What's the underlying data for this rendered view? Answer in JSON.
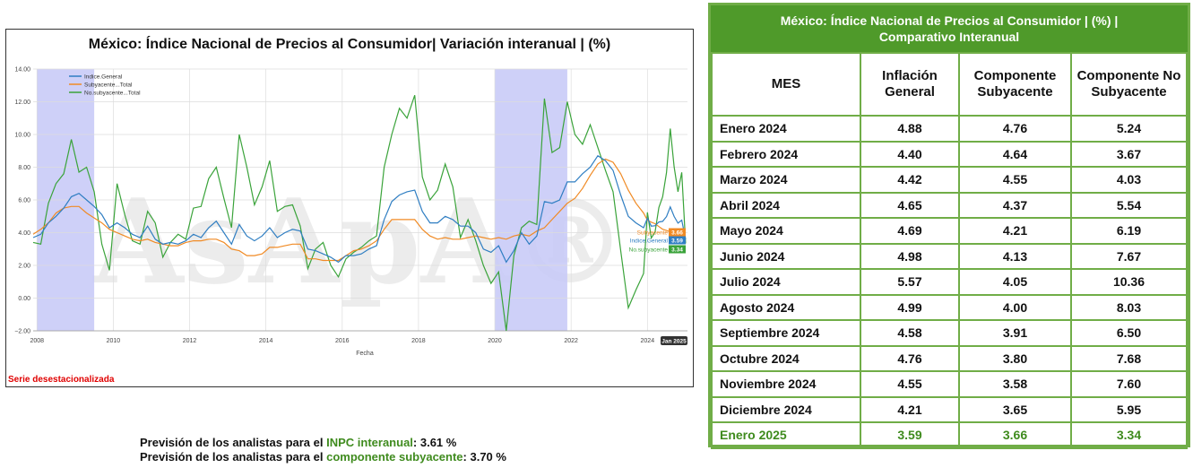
{
  "chart": {
    "title": "México: Índice Nacional de Precios al Consumidor| Variación interanual | (%)",
    "footnote": "Serie desestacionalizada",
    "watermark": "AsApA®"
  },
  "chart_data": {
    "type": "line",
    "xlabel": "Fecha",
    "ylabel": "",
    "ylim": [
      -2,
      14
    ],
    "yticks": [
      "14.00",
      "12.00",
      "10.00",
      "8.00",
      "6.00",
      "4.00",
      "2.00",
      "0.00",
      "−2.00"
    ],
    "xticks": [
      "2008",
      "2010",
      "2012",
      "2014",
      "2016",
      "2018",
      "2020",
      "2022",
      "2024"
    ],
    "last_x_label": "Jan 2025",
    "shaded_periods": [
      [
        2008.0,
        2009.5
      ],
      [
        2020.0,
        2021.9
      ]
    ],
    "legend_position": "top-left",
    "grid": true,
    "series": [
      {
        "name": "Indice.General",
        "color": "#2f7ec2",
        "end_label": "Indice.General",
        "end_value": "3.59",
        "x": [
          2007.9,
          2008.1,
          2008.3,
          2008.5,
          2008.7,
          2008.9,
          2009.1,
          2009.3,
          2009.5,
          2009.7,
          2009.9,
          2010.1,
          2010.3,
          2010.5,
          2010.7,
          2010.9,
          2011.1,
          2011.3,
          2011.5,
          2011.7,
          2011.9,
          2012.1,
          2012.3,
          2012.5,
          2012.7,
          2012.9,
          2013.1,
          2013.3,
          2013.5,
          2013.7,
          2013.9,
          2014.1,
          2014.3,
          2014.5,
          2014.7,
          2014.9,
          2015.1,
          2015.3,
          2015.5,
          2015.7,
          2015.9,
          2016.1,
          2016.3,
          2016.5,
          2016.7,
          2016.9,
          2017.1,
          2017.3,
          2017.5,
          2017.7,
          2017.9,
          2018.1,
          2018.3,
          2018.5,
          2018.7,
          2018.9,
          2019.1,
          2019.3,
          2019.5,
          2019.7,
          2019.9,
          2020.1,
          2020.3,
          2020.5,
          2020.7,
          2020.9,
          2021.1,
          2021.3,
          2021.5,
          2021.7,
          2021.9,
          2022.1,
          2022.3,
          2022.5,
          2022.7,
          2022.9,
          2023.1,
          2023.3,
          2023.5,
          2023.7,
          2023.9,
          2024.0,
          2024.1,
          2024.2,
          2024.3,
          2024.4,
          2024.5,
          2024.6,
          2024.7,
          2024.8,
          2024.9,
          2025.0
        ],
        "y": [
          3.7,
          3.9,
          4.6,
          5.0,
          5.5,
          6.2,
          6.4,
          6.0,
          5.6,
          5.1,
          4.3,
          4.6,
          4.3,
          3.9,
          3.7,
          4.4,
          3.6,
          3.3,
          3.4,
          3.3,
          3.5,
          3.9,
          3.7,
          4.3,
          4.7,
          4.0,
          3.3,
          4.5,
          3.8,
          3.5,
          3.8,
          4.3,
          3.7,
          4.0,
          4.2,
          4.1,
          3.0,
          2.9,
          2.7,
          2.5,
          2.2,
          2.6,
          2.6,
          2.7,
          3.0,
          3.2,
          4.8,
          5.9,
          6.3,
          6.5,
          6.6,
          5.3,
          4.6,
          4.6,
          5.0,
          4.8,
          4.4,
          4.4,
          4.0,
          3.0,
          2.8,
          3.2,
          2.2,
          2.9,
          4.0,
          3.3,
          3.8,
          5.9,
          5.8,
          6.0,
          7.1,
          7.1,
          7.6,
          8.0,
          8.7,
          8.4,
          7.8,
          6.3,
          5.0,
          4.6,
          4.3,
          4.88,
          4.4,
          4.42,
          4.65,
          4.69,
          4.98,
          5.57,
          4.99,
          4.58,
          4.76,
          3.59
        ]
      },
      {
        "name": "Subyacente...Total",
        "color": "#f08a24",
        "end_label": "Subyacente",
        "end_value": "3.66",
        "x": [
          2007.9,
          2008.1,
          2008.3,
          2008.5,
          2008.7,
          2008.9,
          2009.1,
          2009.3,
          2009.5,
          2009.7,
          2009.9,
          2010.1,
          2010.3,
          2010.5,
          2010.7,
          2010.9,
          2011.1,
          2011.3,
          2011.5,
          2011.7,
          2011.9,
          2012.1,
          2012.3,
          2012.5,
          2012.7,
          2012.9,
          2013.1,
          2013.3,
          2013.5,
          2013.7,
          2013.9,
          2014.1,
          2014.3,
          2014.5,
          2014.7,
          2014.9,
          2015.1,
          2015.3,
          2015.5,
          2015.7,
          2015.9,
          2016.1,
          2016.3,
          2016.5,
          2016.7,
          2016.9,
          2017.1,
          2017.3,
          2017.5,
          2017.7,
          2017.9,
          2018.1,
          2018.3,
          2018.5,
          2018.7,
          2018.9,
          2019.1,
          2019.3,
          2019.5,
          2019.7,
          2019.9,
          2020.1,
          2020.3,
          2020.5,
          2020.7,
          2020.9,
          2021.1,
          2021.3,
          2021.5,
          2021.7,
          2021.9,
          2022.1,
          2022.3,
          2022.5,
          2022.7,
          2022.9,
          2023.1,
          2023.3,
          2023.5,
          2023.7,
          2023.9,
          2024.0,
          2024.1,
          2024.2,
          2024.3,
          2024.4,
          2024.5,
          2024.6,
          2024.7,
          2024.8,
          2024.9,
          2025.0
        ],
        "y": [
          3.9,
          4.2,
          4.6,
          5.2,
          5.5,
          5.6,
          5.6,
          5.2,
          4.9,
          4.6,
          4.2,
          4.0,
          3.8,
          3.6,
          3.5,
          3.6,
          3.4,
          3.3,
          3.2,
          3.2,
          3.4,
          3.5,
          3.5,
          3.6,
          3.6,
          3.4,
          3.0,
          2.9,
          2.6,
          2.6,
          2.7,
          3.1,
          3.1,
          3.2,
          3.3,
          3.3,
          2.4,
          2.4,
          2.3,
          2.3,
          2.3,
          2.6,
          2.9,
          3.0,
          3.2,
          3.5,
          4.2,
          4.8,
          4.8,
          4.8,
          4.8,
          4.2,
          3.8,
          3.6,
          3.7,
          3.6,
          3.6,
          3.7,
          3.8,
          3.7,
          3.6,
          3.7,
          3.6,
          3.8,
          3.9,
          3.8,
          4.1,
          4.3,
          4.8,
          5.3,
          5.8,
          6.1,
          6.7,
          7.5,
          8.2,
          8.5,
          8.3,
          7.6,
          6.6,
          5.8,
          5.2,
          4.76,
          4.64,
          4.55,
          4.37,
          4.21,
          4.13,
          4.05,
          4.0,
          3.91,
          3.8,
          3.66
        ]
      },
      {
        "name": "No.subyacente...Total",
        "color": "#3aa33a",
        "end_label": "No.subyacente",
        "end_value": "3.34",
        "x": [
          2007.9,
          2008.1,
          2008.3,
          2008.5,
          2008.7,
          2008.9,
          2009.1,
          2009.3,
          2009.5,
          2009.7,
          2009.9,
          2010.1,
          2010.3,
          2010.5,
          2010.7,
          2010.9,
          2011.1,
          2011.3,
          2011.5,
          2011.7,
          2011.9,
          2012.1,
          2012.3,
          2012.5,
          2012.7,
          2012.9,
          2013.1,
          2013.3,
          2013.5,
          2013.7,
          2013.9,
          2014.1,
          2014.3,
          2014.5,
          2014.7,
          2014.9,
          2015.1,
          2015.3,
          2015.5,
          2015.7,
          2015.9,
          2016.1,
          2016.3,
          2016.5,
          2016.7,
          2016.9,
          2017.1,
          2017.3,
          2017.5,
          2017.7,
          2017.9,
          2018.1,
          2018.3,
          2018.5,
          2018.7,
          2018.9,
          2019.1,
          2019.3,
          2019.5,
          2019.7,
          2019.9,
          2020.1,
          2020.3,
          2020.5,
          2020.7,
          2020.9,
          2021.1,
          2021.3,
          2021.5,
          2021.7,
          2021.9,
          2022.1,
          2022.3,
          2022.5,
          2022.7,
          2022.9,
          2023.1,
          2023.3,
          2023.5,
          2023.7,
          2023.9,
          2024.0,
          2024.1,
          2024.2,
          2024.3,
          2024.4,
          2024.5,
          2024.6,
          2024.7,
          2024.8,
          2024.9,
          2025.0
        ],
        "y": [
          3.4,
          3.3,
          5.8,
          7.0,
          7.6,
          9.7,
          7.7,
          8.0,
          6.5,
          3.3,
          1.7,
          7.0,
          5.1,
          3.5,
          3.3,
          5.3,
          4.6,
          2.5,
          3.4,
          3.9,
          3.6,
          5.5,
          5.6,
          7.3,
          8.0,
          6.1,
          4.3,
          10.0,
          8.0,
          5.7,
          6.8,
          8.4,
          5.3,
          5.6,
          5.7,
          4.4,
          1.8,
          3.0,
          3.4,
          2.0,
          1.3,
          2.4,
          2.8,
          3.1,
          3.5,
          3.8,
          8.0,
          10.0,
          11.6,
          11.0,
          12.4,
          7.4,
          6.0,
          6.6,
          8.2,
          6.8,
          3.7,
          4.8,
          3.5,
          2.0,
          0.9,
          1.6,
          -2.0,
          2.6,
          4.3,
          4.7,
          4.5,
          12.2,
          8.9,
          9.2,
          12.0,
          10.0,
          9.4,
          10.6,
          9.2,
          7.8,
          6.5,
          2.9,
          -0.6,
          0.5,
          1.5,
          5.24,
          3.67,
          4.03,
          5.54,
          6.19,
          7.67,
          10.36,
          8.03,
          6.5,
          7.68,
          3.34
        ]
      }
    ]
  },
  "forecast": {
    "line1_prefix": "Previsión de los analistas para el ",
    "line1_highlight": "INPC interanual",
    "line1_suffix": ": 3.61 %",
    "line2_prefix": "Previsión de los analistas para el ",
    "line2_highlight": "componente subyacente",
    "line2_suffix": ": 3.70 %"
  },
  "table": {
    "title_line1": "México: Índice Nacional de Precios al Consumidor | (%) |",
    "title_line2": "Comparativo Interanual",
    "headers": [
      "MES",
      "Inflación General",
      "Componente Subyacente",
      "Componente No Subyacente"
    ],
    "rows": [
      [
        "Enero 2024",
        "4.88",
        "4.76",
        "5.24"
      ],
      [
        "Febrero 2024",
        "4.40",
        "4.64",
        "3.67"
      ],
      [
        "Marzo 2024",
        "4.42",
        "4.55",
        "4.03"
      ],
      [
        "Abril 2024",
        "4.65",
        "4.37",
        "5.54"
      ],
      [
        "Mayo 2024",
        "4.69",
        "4.21",
        "6.19"
      ],
      [
        "Junio 2024",
        "4.98",
        "4.13",
        "7.67"
      ],
      [
        "Julio 2024",
        "5.57",
        "4.05",
        "10.36"
      ],
      [
        "Agosto 2024",
        "4.99",
        "4.00",
        "8.03"
      ],
      [
        "Septiembre 2024",
        "4.58",
        "3.91",
        "6.50"
      ],
      [
        "Octubre 2024",
        "4.76",
        "3.80",
        "7.68"
      ],
      [
        "Noviembre 2024",
        "4.55",
        "3.58",
        "7.60"
      ],
      [
        "Diciembre 2024",
        "4.21",
        "3.65",
        "5.95"
      ],
      [
        "Enero 2025",
        "3.59",
        "3.66",
        "3.34"
      ]
    ]
  }
}
